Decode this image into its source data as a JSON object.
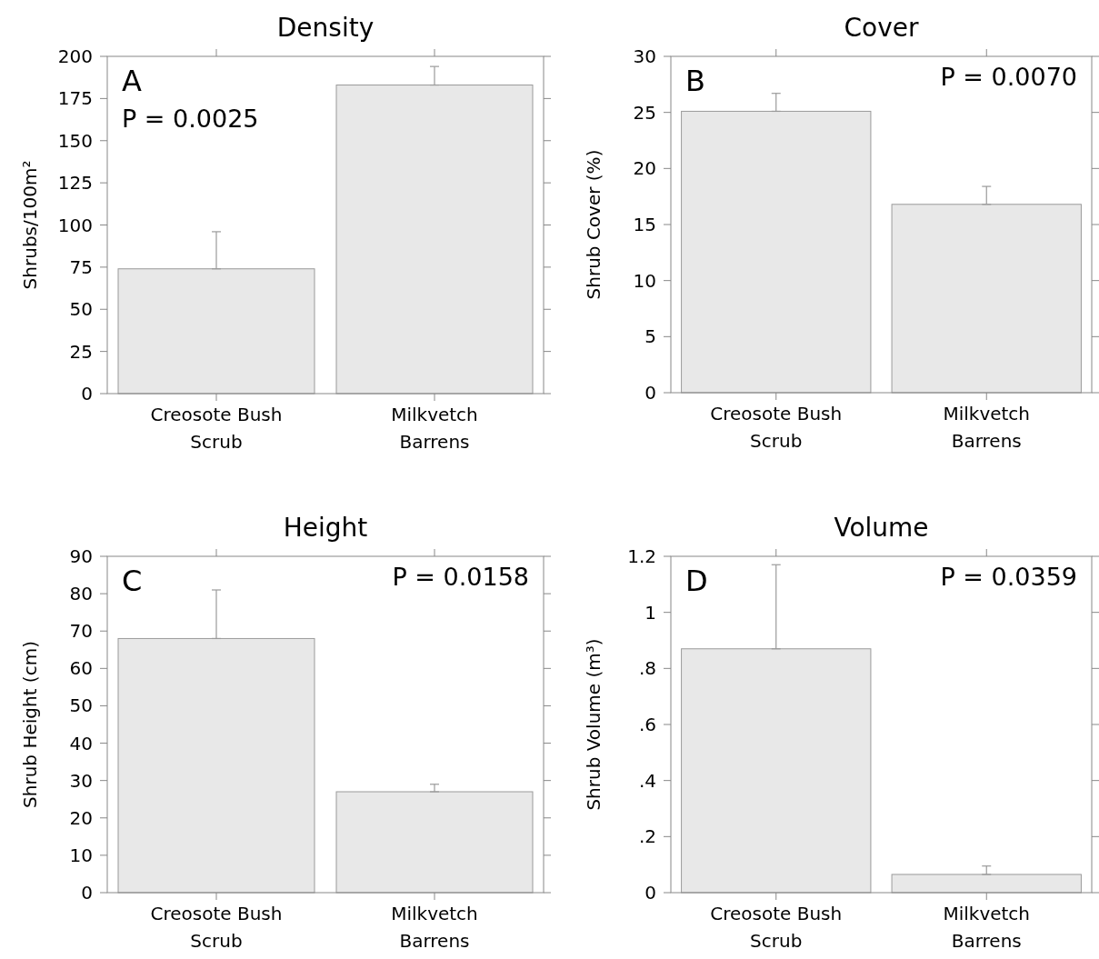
{
  "chart_data": [
    {
      "type": "bar",
      "title": "Density",
      "ylabel": "Shrubs/100m²",
      "categories": [
        "Creosote Bush\nScrub",
        "Milkvetch\nBarrens"
      ],
      "values": [
        74,
        183
      ],
      "errors": [
        [
          74,
          96
        ],
        [
          183,
          194
        ]
      ],
      "color": "#e8e8e8",
      "ylim": [
        0,
        200
      ],
      "yticks": [
        0,
        25,
        50,
        75,
        100,
        125,
        150,
        175,
        200
      ],
      "annotations": [
        "A",
        "P = 0.0025"
      ]
    },
    {
      "type": "bar",
      "title": "Cover",
      "ylabel": "Shrub Cover (%)",
      "categories": [
        "Creosote Bush\nScrub",
        "Milkvetch\nBarrens"
      ],
      "values": [
        25.1,
        16.8
      ],
      "errors": [
        [
          25.1,
          26.7
        ],
        [
          16.8,
          18.4
        ]
      ],
      "color": "#e8e8e8",
      "ylim": [
        0,
        30
      ],
      "yticks": [
        0,
        5,
        10,
        15,
        20,
        25,
        30
      ],
      "annotations": [
        "B",
        "P = 0.0070"
      ]
    },
    {
      "type": "bar",
      "title": "Height",
      "ylabel": "Shrub Height (cm)",
      "categories": [
        "Creosote Bush\nScrub",
        "Milkvetch\nBarrens"
      ],
      "values": [
        68,
        27
      ],
      "errors": [
        [
          68,
          81
        ],
        [
          27,
          29
        ]
      ],
      "color": "#e8e8e8",
      "ylim": [
        0,
        90
      ],
      "yticks": [
        0,
        10,
        20,
        30,
        40,
        50,
        60,
        70,
        80,
        90
      ],
      "annotations": [
        "C",
        "P = 0.0158"
      ]
    },
    {
      "type": "bar",
      "title": "Volume",
      "ylabel": "Shrub Volume (m³)",
      "categories": [
        "Creosote Bush\nScrub",
        "Milkvetch\nBarrens"
      ],
      "values": [
        0.87,
        0.065
      ],
      "errors": [
        [
          0.87,
          1.17
        ],
        [
          0.065,
          0.095
        ]
      ],
      "color": "#e8e8e8",
      "ylim": [
        0,
        1.2
      ],
      "yticks": [
        0,
        {
          "value": 0.2,
          "label": ".2"
        },
        {
          "value": 0.4,
          "label": ".4"
        },
        {
          "value": 0.6,
          "label": ".6"
        },
        {
          "value": 0.8,
          "label": ".8"
        },
        1,
        1.2
      ],
      "annotations": [
        "D",
        "P = 0.0359"
      ]
    }
  ]
}
